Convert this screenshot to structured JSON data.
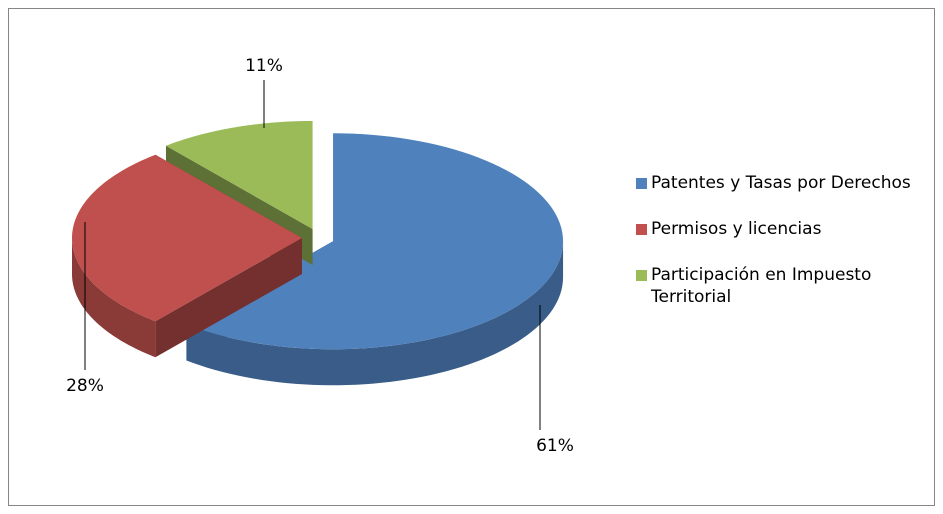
{
  "chart_data": {
    "type": "pie",
    "categories": [
      "Patentes y Tasas por Derechos",
      "Permisos y licencias",
      "Participación en Impuesto Territorial"
    ],
    "values": [
      61,
      28,
      11
    ],
    "value_labels": [
      "61%",
      "28%",
      "11%"
    ],
    "colors": [
      "#4f81bd",
      "#c0504d",
      "#9bbb59"
    ],
    "legend": "right"
  }
}
